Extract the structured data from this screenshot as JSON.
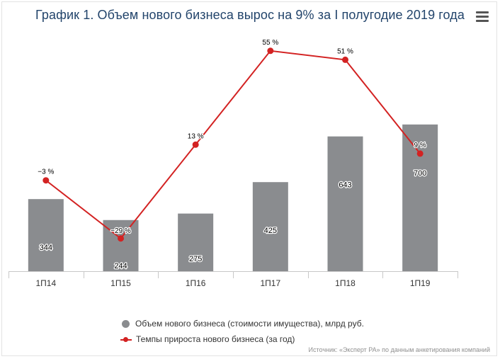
{
  "title": "График 1. Объем нового бизнеса вырос на 9% за I полугодие 2019 года",
  "legend": {
    "bars": "Объем нового бизнеса (стоимости имущества), млрд руб.",
    "line": "Темпы прироста нового бизнеса (за год)"
  },
  "source": "Источник: «Эксперт РА» по данным анкетирования компаний",
  "colors": {
    "bars": "#8a8c8f",
    "line": "#d32222",
    "title": "#22446b"
  },
  "icons": {
    "menu": "hamburger-menu-icon"
  },
  "chart_data": {
    "type": "bar",
    "categories": [
      "1П14",
      "1П15",
      "1П16",
      "1П17",
      "1П18",
      "1П19"
    ],
    "series": [
      {
        "name": "Объем нового бизнеса (стоимости имущества), млрд руб.",
        "type": "bar",
        "values": [
          344,
          244,
          275,
          425,
          643,
          700
        ],
        "labels": [
          "344",
          "244",
          "275",
          "425",
          "643",
          "700"
        ]
      },
      {
        "name": "Темпы прироста нового бизнеса (за год)",
        "type": "line",
        "values": [
          -3,
          -29,
          13,
          55,
          51,
          9
        ],
        "labels": [
          "−3 %",
          "−29 %",
          "13 %",
          "55 %",
          "51 %",
          "9 %"
        ]
      }
    ],
    "title": "График 1. Объем нового бизнеса вырос на 9% за I полугодие 2019 года",
    "xlabel": "",
    "ylabel": "",
    "ylim_bars": [
      0,
      1000
    ],
    "ylim_line": [
      -50,
      60
    ],
    "grid": false,
    "legend_position": "bottom"
  }
}
